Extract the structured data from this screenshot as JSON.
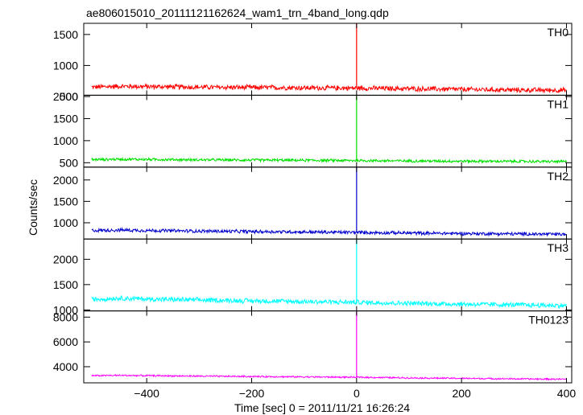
{
  "chart_data": {
    "type": "line",
    "title": "ae806015010_20111121162624_wam1_trn_4band_long.qdp",
    "xlabel": "Time [sec] 0 = 2011/11/21 16:26:24",
    "ylabel": "Counts/sec",
    "xlim": [
      -520,
      410
    ],
    "xticks": [
      -400,
      -200,
      0,
      200,
      400
    ],
    "grid": false,
    "legend": "none",
    "panels": [
      {
        "name": "TH0",
        "color": "#ff0000",
        "ylim": [
          520,
          1680
        ],
        "yticks": [
          500,
          1000,
          1500
        ],
        "x": [
          -505,
          -450,
          -400,
          -300,
          -200,
          -100,
          0,
          100,
          200,
          300,
          400
        ],
        "values": [
          650,
          665,
          660,
          650,
          645,
          640,
          635,
          625,
          615,
          605,
          600
        ],
        "noise": 45,
        "spike": {
          "x": 0,
          "peak": 1680
        }
      },
      {
        "name": "TH1",
        "color": "#00e000",
        "ylim": [
          400,
          2030
        ],
        "yticks": [
          500,
          1000,
          1500,
          2000
        ],
        "x": [
          -505,
          -450,
          -400,
          -300,
          -200,
          -100,
          0,
          100,
          200,
          300,
          400
        ],
        "values": [
          570,
          580,
          575,
          565,
          560,
          555,
          550,
          540,
          535,
          530,
          525
        ],
        "noise": 35,
        "spike": {
          "x": 0,
          "peak": 2030
        }
      },
      {
        "name": "TH2",
        "color": "#0000cc",
        "ylim": [
          620,
          2300
        ],
        "yticks": [
          1000,
          1500,
          2000
        ],
        "x": [
          -505,
          -450,
          -400,
          -300,
          -200,
          -100,
          0,
          100,
          200,
          300,
          400
        ],
        "values": [
          820,
          830,
          820,
          805,
          795,
          785,
          775,
          760,
          750,
          740,
          730
        ],
        "noise": 45,
        "spike": {
          "x": 0,
          "peak": 2300
        }
      },
      {
        "name": "TH3",
        "color": "#00ffff",
        "ylim": [
          980,
          2400
        ],
        "yticks": [
          1000,
          1500,
          2000
        ],
        "x": [
          -505,
          -450,
          -400,
          -300,
          -200,
          -100,
          0,
          100,
          200,
          300,
          400
        ],
        "values": [
          1210,
          1230,
          1215,
          1195,
          1180,
          1165,
          1150,
          1130,
          1115,
          1100,
          1085
        ],
        "noise": 55,
        "spike": {
          "x": 0,
          "peak": 2400
        }
      },
      {
        "name": "TH0123",
        "color": "#ff00ff",
        "ylim": [
          2700,
          8500
        ],
        "yticks": [
          4000,
          6000,
          8000
        ],
        "x": [
          -505,
          -450,
          -400,
          -300,
          -200,
          -100,
          0,
          100,
          200,
          300,
          400
        ],
        "values": [
          3280,
          3300,
          3280,
          3240,
          3210,
          3180,
          3150,
          3100,
          3060,
          3020,
          2990
        ],
        "noise": 70,
        "spike": {
          "x": 0,
          "peak": 8500
        }
      }
    ]
  }
}
